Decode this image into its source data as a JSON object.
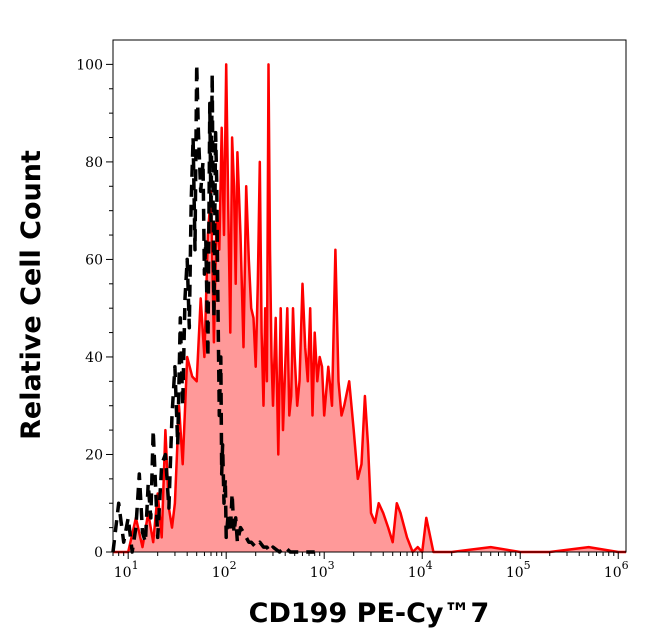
{
  "chart_data": {
    "type": "area",
    "title": "",
    "xlabel": "CD199 PE-Cy™7",
    "ylabel": "Relative Cell Count",
    "x_scale": "log",
    "xlim": [
      7,
      1200000
    ],
    "ylim": [
      0,
      105
    ],
    "x_ticks": [
      {
        "base": "10",
        "exp": "1",
        "value": 10
      },
      {
        "base": "10",
        "exp": "2",
        "value": 100
      },
      {
        "base": "10",
        "exp": "3",
        "value": 1000
      },
      {
        "base": "10",
        "exp": "4",
        "value": 10000
      },
      {
        "base": "10",
        "exp": "5",
        "value": 100000
      },
      {
        "base": "10",
        "exp": "6",
        "value": 1000000
      }
    ],
    "y_ticks": [
      "0",
      "20",
      "40",
      "60",
      "80",
      "100"
    ],
    "grid": false,
    "legend": "none",
    "series": [
      {
        "style": "dashed",
        "color": "#000000",
        "fill": "none",
        "x": [
          7,
          8,
          9,
          10,
          11,
          12,
          13,
          14,
          15,
          16,
          17,
          18,
          20,
          22,
          24,
          26,
          28,
          30,
          32,
          34,
          36,
          38,
          40,
          42,
          44,
          46,
          48,
          50,
          52,
          55,
          58,
          60,
          62,
          65,
          68,
          70,
          72,
          75,
          78,
          80,
          82,
          85,
          88,
          90,
          92,
          95,
          98,
          100,
          105,
          110,
          115,
          120,
          125,
          130,
          140,
          150,
          160,
          170,
          180,
          200,
          220,
          240,
          260,
          280,
          300,
          350,
          400,
          450,
          500,
          600,
          700,
          800
        ],
        "y": [
          0,
          10,
          2,
          7,
          0,
          5,
          16,
          4,
          2,
          14,
          7,
          25,
          3,
          18,
          20,
          9,
          28,
          38,
          22,
          48,
          30,
          52,
          60,
          46,
          72,
          85,
          62,
          100,
          86,
          74,
          80,
          57,
          64,
          40,
          92,
          68,
          98,
          48,
          86,
          76,
          55,
          28,
          40,
          16,
          22,
          10,
          15,
          3,
          8,
          4,
          12,
          4,
          7,
          2,
          5,
          4,
          3,
          2,
          2,
          1,
          2,
          1,
          1,
          0,
          1,
          0,
          1,
          0,
          0,
          0,
          0,
          0
        ]
      },
      {
        "style": "solid",
        "color": "#ff0000",
        "fill": "#ff9999",
        "x": [
          7,
          10,
          12,
          14,
          16,
          18,
          20,
          22,
          24,
          26,
          28,
          30,
          33,
          36,
          40,
          45,
          50,
          55,
          60,
          65,
          70,
          75,
          80,
          85,
          90,
          95,
          100,
          105,
          110,
          115,
          120,
          125,
          130,
          140,
          150,
          160,
          170,
          180,
          190,
          200,
          210,
          220,
          230,
          240,
          250,
          260,
          270,
          280,
          290,
          300,
          320,
          340,
          360,
          380,
          400,
          420,
          440,
          460,
          480,
          500,
          530,
          560,
          600,
          640,
          680,
          720,
          760,
          800,
          850,
          900,
          950,
          1000,
          1100,
          1200,
          1300,
          1400,
          1500,
          1600,
          1800,
          2000,
          2200,
          2400,
          2600,
          2800,
          3000,
          3300,
          3600,
          4000,
          4500,
          5000,
          5500,
          6000,
          7000,
          8000,
          9000,
          10000,
          11000,
          13000,
          20000,
          50000,
          100000,
          200000,
          500000,
          1000000,
          1200000
        ],
        "y": [
          0,
          0,
          7,
          1,
          8,
          2,
          12,
          3,
          25,
          9,
          5,
          10,
          30,
          18,
          40,
          36,
          35,
          52,
          40,
          65,
          74,
          43,
          70,
          62,
          87,
          65,
          100,
          70,
          45,
          85,
          75,
          55,
          82,
          65,
          42,
          75,
          60,
          50,
          48,
          38,
          55,
          80,
          45,
          30,
          50,
          35,
          100,
          62,
          40,
          30,
          48,
          20,
          50,
          25,
          38,
          50,
          28,
          32,
          50,
          40,
          30,
          35,
          55,
          42,
          35,
          50,
          28,
          45,
          35,
          40,
          38,
          28,
          38,
          30,
          62,
          35,
          28,
          30,
          35,
          25,
          15,
          18,
          32,
          22,
          8,
          6,
          10,
          8,
          5,
          2,
          10,
          8,
          3,
          0,
          1,
          0,
          7,
          0,
          0,
          1,
          0,
          0,
          1,
          0,
          0
        ]
      }
    ]
  }
}
